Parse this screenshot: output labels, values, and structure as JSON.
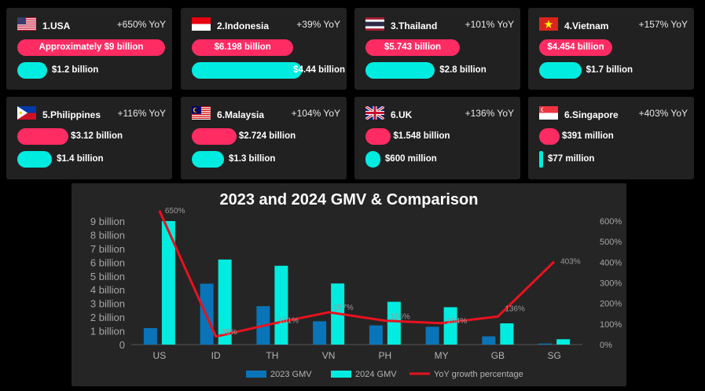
{
  "cards": [
    {
      "name": "1.USA",
      "yoy": "+650% YoY",
      "gmv_2024": "Approximately $9 billion",
      "gmv_2024_value": 9.0,
      "gmv_2023": "$1.2 billion",
      "gmv_2023_value": 1.2,
      "flag": "us-flag-icon"
    },
    {
      "name": "2.Indonesia",
      "yoy": "+39% YoY",
      "gmv_2024": "$6.198 billion",
      "gmv_2024_value": 6.198,
      "gmv_2023": "$4.44 billion",
      "gmv_2023_value": 4.44,
      "flag": "indonesia-flag-icon"
    },
    {
      "name": "3.Thailand",
      "yoy": "+101% YoY",
      "gmv_2024": "$5.743 billion",
      "gmv_2024_value": 5.743,
      "gmv_2023": "$2.8 billion",
      "gmv_2023_value": 2.8,
      "flag": "thailand-flag-icon"
    },
    {
      "name": "4.Vietnam",
      "yoy": "+157% YoY",
      "gmv_2024": "$4.454 billion",
      "gmv_2024_value": 4.454,
      "gmv_2023": "$1.7 billion",
      "gmv_2023_value": 1.7,
      "flag": "vietnam-flag-icon"
    },
    {
      "name": "5.Philippines",
      "yoy": "+116% YoY",
      "gmv_2024": "$3.12 billion",
      "gmv_2024_value": 3.12,
      "gmv_2023": "$1.4 billion",
      "gmv_2023_value": 1.4,
      "flag": "philippines-flag-icon"
    },
    {
      "name": "6.Malaysia",
      "yoy": "+104% YoY",
      "gmv_2024": "$2.724 billion",
      "gmv_2024_value": 2.724,
      "gmv_2023": "$1.3 billion",
      "gmv_2023_value": 1.3,
      "flag": "malaysia-flag-icon"
    },
    {
      "name": "6.UK",
      "yoy": "+136% YoY",
      "gmv_2024": "$1.548 billion",
      "gmv_2024_value": 1.548,
      "gmv_2023": "$600 million",
      "gmv_2023_value": 0.6,
      "flag": "uk-flag-icon"
    },
    {
      "name": "6.Singapore",
      "yoy": "+403% YoY",
      "gmv_2024": "$391 million",
      "gmv_2024_value": 0.391,
      "gmv_2023": "$77 million",
      "gmv_2023_value": 0.077,
      "flag": "singapore-flag-icon"
    }
  ],
  "colors": {
    "pink": "#fe2c63",
    "cyan": "#00ece0",
    "bar_2023": "#0a74b8",
    "bar_2024": "#00ece0",
    "line": "#e8121f",
    "card_bg": "#212121",
    "page_bg": "#000000"
  },
  "chart_data": {
    "type": "bar",
    "title": "2023 and 2024 GMV & Comparison",
    "categories": [
      "US",
      "ID",
      "TH",
      "VN",
      "PH",
      "MY",
      "GB",
      "SG"
    ],
    "series": [
      {
        "name": "2023 GMV",
        "type": "bar",
        "axis": "left",
        "values": [
          1.2,
          4.44,
          2.8,
          1.7,
          1.4,
          1.3,
          0.6,
          0.077
        ]
      },
      {
        "name": "2024 GMV",
        "type": "bar",
        "axis": "left",
        "values": [
          9.0,
          6.198,
          5.743,
          4.454,
          3.12,
          2.724,
          1.548,
          0.391
        ]
      },
      {
        "name": "YoY growth percentage",
        "type": "line",
        "axis": "right",
        "values": [
          650,
          39,
          101,
          157,
          116,
          104,
          136,
          403
        ]
      }
    ],
    "point_labels": [
      "650%",
      "39%",
      "101%",
      "157%",
      "116%",
      "104%",
      "136%",
      "403%"
    ],
    "ylim": [
      0,
      9
    ],
    "y_ticks": [
      "0",
      "1 billion",
      "2 billion",
      "3 billion",
      "4 billion",
      "5 billion",
      "6 billion",
      "7 billion",
      "8 billion",
      "9 billion"
    ],
    "y2lim": [
      0,
      600
    ],
    "y2_ticks": [
      "0%",
      "100%",
      "200%",
      "300%",
      "400%",
      "500%",
      "600%"
    ],
    "grid": false,
    "legend": "bottom"
  }
}
